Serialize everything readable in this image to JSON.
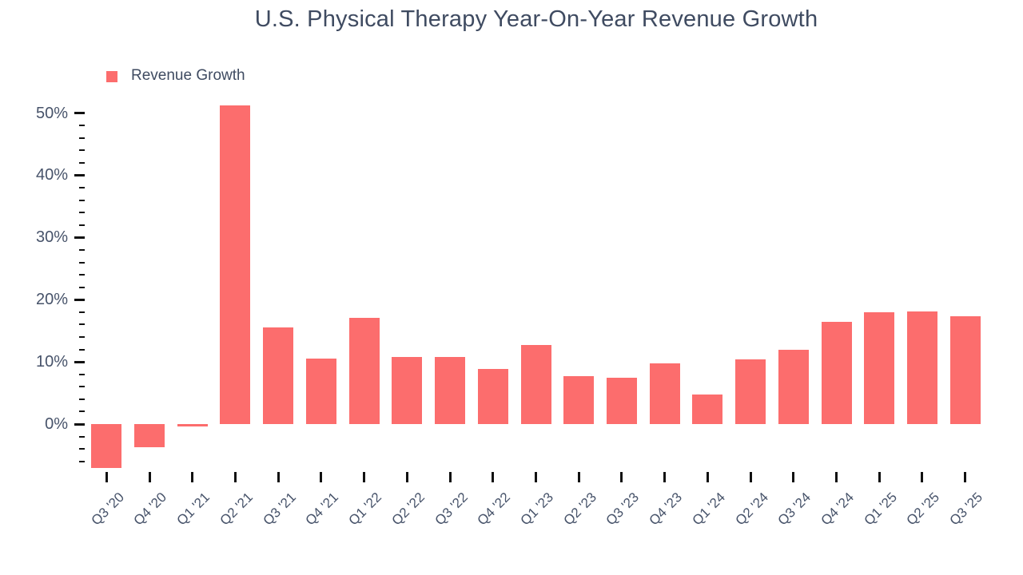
{
  "title": "U.S. Physical Therapy Year-On-Year Revenue Growth",
  "legend": {
    "label": "Revenue Growth"
  },
  "colors": {
    "bar": "#fc6d6d",
    "title_text": "#3f4b61",
    "axis_text": "#47536a",
    "tick_mark": "#111111",
    "background": "#ffffff"
  },
  "chart_data": {
    "type": "bar",
    "title": "U.S. Physical Therapy Year-On-Year Revenue Growth",
    "series_name": "Revenue Growth",
    "categories": [
      "Q3 '20",
      "Q4 '20",
      "Q1 '21",
      "Q2 '21",
      "Q3 '21",
      "Q4 '21",
      "Q1 '22",
      "Q2 '22",
      "Q3 '22",
      "Q4 '22",
      "Q1 '23",
      "Q2 '23",
      "Q3 '23",
      "Q4 '23",
      "Q1 '24",
      "Q2 '24",
      "Q3 '24",
      "Q4 '24",
      "Q1 '25",
      "Q2 '25",
      "Q3 '25"
    ],
    "values": [
      -7.0,
      -3.7,
      -0.4,
      51.2,
      15.6,
      10.5,
      17.1,
      10.8,
      10.8,
      8.8,
      12.7,
      7.7,
      7.5,
      9.7,
      4.8,
      10.4,
      12.0,
      16.5,
      18.0,
      18.1,
      17.3
    ],
    "unit": "%",
    "xlabel": "",
    "ylabel": "",
    "ylim": [
      -7.7,
      52
    ],
    "ytick_major": [
      0,
      10,
      20,
      30,
      40,
      50
    ],
    "ytick_labels": [
      "0%",
      "10%",
      "20%",
      "30%",
      "40%",
      "50%"
    ],
    "ytick_minor_step": 2,
    "grid": false,
    "legend_position": "top-left"
  }
}
